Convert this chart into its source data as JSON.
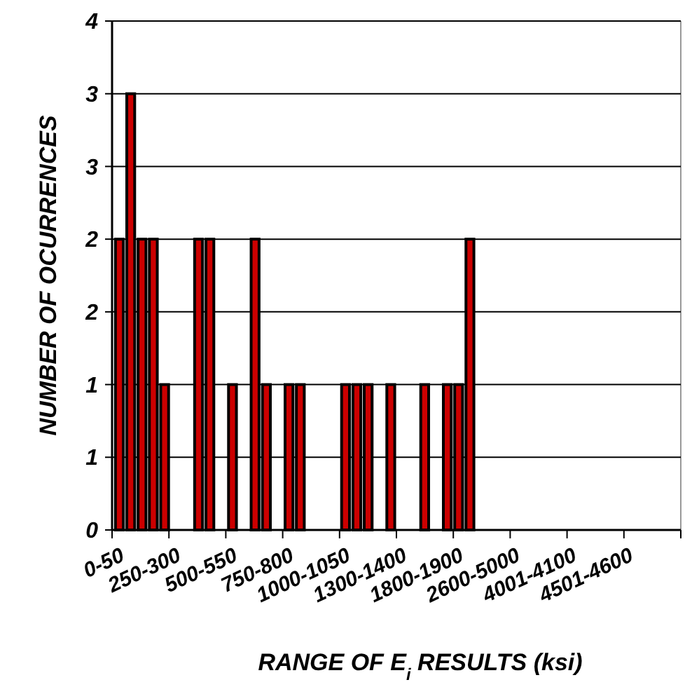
{
  "chart_data": {
    "type": "bar",
    "xlabel": "RANGE OF E$_{i}$ RESULTS (ksi)",
    "ylabel": "NUMBER OF OCURRENCES",
    "categories": [
      "0-50",
      null,
      null,
      null,
      null,
      "250-300",
      null,
      null,
      null,
      null,
      "500-550",
      null,
      null,
      null,
      null,
      "750-800",
      null,
      null,
      null,
      null,
      "1000-1050",
      null,
      null,
      null,
      null,
      "1300-1400",
      null,
      null,
      null,
      null,
      "1800-1900",
      null,
      null,
      null,
      null,
      "2600-5000",
      null,
      null,
      null,
      null,
      "4001-4100",
      null,
      null,
      null,
      null,
      "4501-4600",
      null,
      null,
      null,
      null
    ],
    "values": [
      2,
      3,
      2,
      2,
      1,
      0,
      0,
      2,
      2,
      0,
      1,
      0,
      2,
      1,
      0,
      1,
      1,
      0,
      0,
      0,
      1,
      1,
      1,
      0,
      1,
      0,
      0,
      1,
      0,
      1,
      1,
      2,
      0,
      0,
      0,
      0,
      0,
      0,
      0,
      0,
      0,
      0,
      0,
      0,
      0,
      0,
      0,
      0,
      0,
      0
    ],
    "color": "#cc0000",
    "ylim": [
      0,
      3.5
    ],
    "yticks": [
      0,
      {
        "value": 0.5,
        "label": "1"
      },
      1,
      {
        "value": 1.5,
        "label": "2"
      },
      2,
      {
        "value": 2.5,
        "label": "3"
      },
      3,
      {
        "value": 3.5,
        "label": "4"
      }
    ],
    "grid": "y"
  }
}
